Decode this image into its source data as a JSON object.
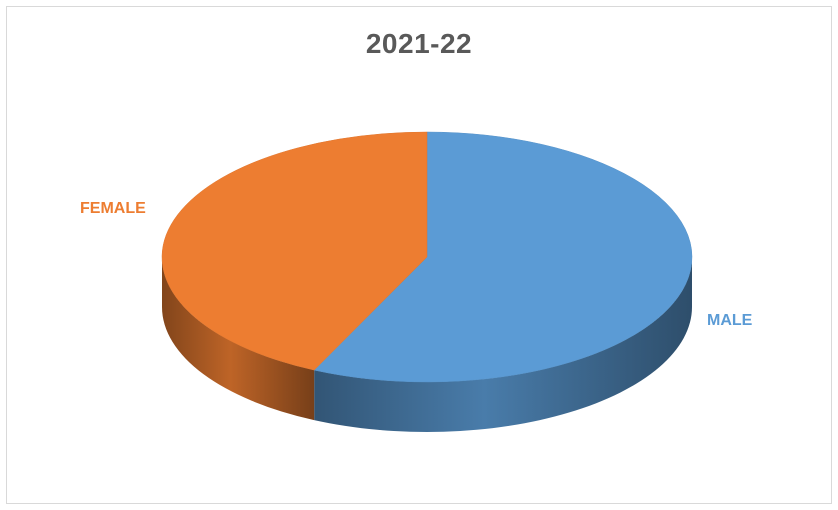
{
  "chart_data": {
    "type": "pie",
    "title": "2021-22",
    "categories": [
      "MALE",
      "FEMALE"
    ],
    "values": [
      57,
      43
    ],
    "colors": {
      "MALE": "#5b9bd5",
      "FEMALE": "#ed7d31"
    },
    "style": "3d",
    "legend": "none"
  }
}
